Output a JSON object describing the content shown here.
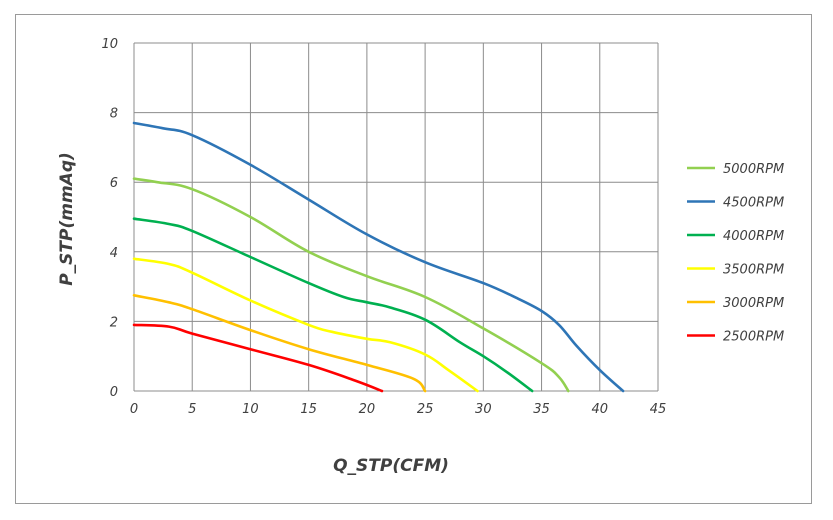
{
  "chart_data": {
    "type": "line",
    "xlabel": "Q_STP(CFM)",
    "ylabel": "P_STP(mmAq)",
    "xlim": [
      0,
      45
    ],
    "ylim": [
      0,
      10
    ],
    "x_ticks": [
      "0",
      "5",
      "10",
      "15",
      "20",
      "25",
      "30",
      "35",
      "40",
      "45"
    ],
    "y_ticks": [
      "0",
      "2",
      "4",
      "6",
      "8",
      "10"
    ],
    "grid": true,
    "legend_position": "right",
    "series": [
      {
        "name": "5000RPM",
        "color": "#92d050",
        "points": [
          [
            0,
            6.1
          ],
          [
            2,
            6.0
          ],
          [
            5,
            5.8
          ],
          [
            10,
            5.0
          ],
          [
            15,
            4.0
          ],
          [
            20,
            3.3
          ],
          [
            25,
            2.7
          ],
          [
            30,
            1.8
          ],
          [
            35,
            0.8
          ],
          [
            36.5,
            0.4
          ],
          [
            37.3,
            0
          ]
        ]
      },
      {
        "name": "4500RPM",
        "color": "#2e75b6",
        "points": [
          [
            0,
            7.7
          ],
          [
            2.5,
            7.55
          ],
          [
            5,
            7.35
          ],
          [
            10,
            6.5
          ],
          [
            15,
            5.5
          ],
          [
            20,
            4.5
          ],
          [
            25,
            3.7
          ],
          [
            30,
            3.1
          ],
          [
            33,
            2.65
          ],
          [
            35,
            2.3
          ],
          [
            36.5,
            1.9
          ],
          [
            38,
            1.3
          ],
          [
            40,
            0.6
          ],
          [
            42,
            0
          ]
        ]
      },
      {
        "name": "4000RPM",
        "color": "#00b050",
        "points": [
          [
            0,
            4.95
          ],
          [
            3,
            4.8
          ],
          [
            5,
            4.6
          ],
          [
            10,
            3.85
          ],
          [
            15,
            3.1
          ],
          [
            18,
            2.7
          ],
          [
            20,
            2.55
          ],
          [
            22,
            2.4
          ],
          [
            25,
            2.05
          ],
          [
            28,
            1.4
          ],
          [
            30,
            1.0
          ],
          [
            32,
            0.55
          ],
          [
            34.2,
            0
          ]
        ]
      },
      {
        "name": "3500RPM",
        "color": "#ffff00",
        "points": [
          [
            0,
            3.8
          ],
          [
            3,
            3.65
          ],
          [
            5,
            3.4
          ],
          [
            10,
            2.6
          ],
          [
            15,
            1.9
          ],
          [
            17,
            1.7
          ],
          [
            20,
            1.5
          ],
          [
            22,
            1.4
          ],
          [
            25,
            1.05
          ],
          [
            27,
            0.6
          ],
          [
            29.5,
            0
          ]
        ]
      },
      {
        "name": "3000RPM",
        "color": "#ffc000",
        "points": [
          [
            0,
            2.75
          ],
          [
            3,
            2.55
          ],
          [
            5,
            2.35
          ],
          [
            10,
            1.75
          ],
          [
            15,
            1.2
          ],
          [
            20,
            0.75
          ],
          [
            24,
            0.35
          ],
          [
            25,
            0
          ]
        ]
      },
      {
        "name": "2500RPM",
        "color": "#ff0000",
        "points": [
          [
            0,
            1.9
          ],
          [
            3,
            1.85
          ],
          [
            5,
            1.65
          ],
          [
            10,
            1.2
          ],
          [
            15,
            0.75
          ],
          [
            19,
            0.3
          ],
          [
            21.3,
            0
          ]
        ]
      }
    ]
  }
}
